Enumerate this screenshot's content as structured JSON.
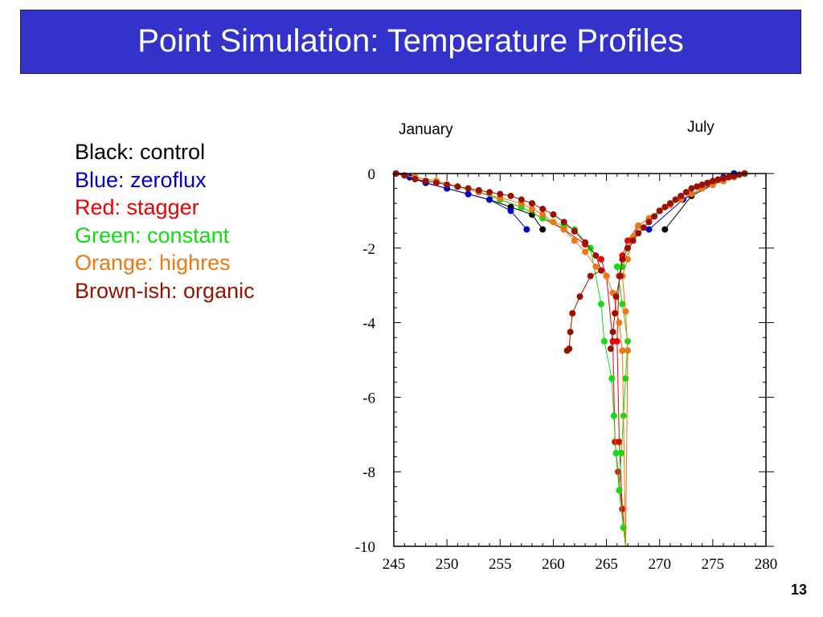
{
  "slide": {
    "title": "Point Simulation: Temperature Profiles",
    "number": "13",
    "title_bar_color": "#3333cc"
  },
  "legend": [
    {
      "text": "Black: control",
      "color": "#000000"
    },
    {
      "text": "Blue: zeroflux",
      "color": "#0000cc"
    },
    {
      "text": "Red: stagger",
      "color": "#ee0000"
    },
    {
      "text": "Green: constant",
      "color": "#11dd11"
    },
    {
      "text": "Orange: highres",
      "color": "#ee7711"
    },
    {
      "text": "Brown-ish: organic",
      "color": "#991100"
    }
  ],
  "chart_data": {
    "type": "line",
    "annotations": [
      "January",
      "July"
    ],
    "xlim": [
      245,
      280
    ],
    "ylim": [
      -10,
      0
    ],
    "xticks": [
      245,
      250,
      255,
      260,
      265,
      270,
      275,
      280
    ],
    "yticks": [
      0,
      -2,
      -4,
      -6,
      -8,
      -10
    ],
    "x_tick_labels": [
      "245",
      "250",
      "255",
      "260",
      "265",
      "270",
      "275",
      "280"
    ],
    "y_tick_labels": [
      "0",
      "-2",
      "-4",
      "-6",
      "-8",
      "-10"
    ],
    "series": [
      {
        "name": "control",
        "color": "#000000",
        "profiles": [
          {
            "x": [
              245.2,
              246.5,
              248,
              250,
              252,
              254,
              256,
              258,
              259
            ],
            "y": [
              0,
              -0.1,
              -0.25,
              -0.4,
              -0.55,
              -0.7,
              -0.9,
              -1.1,
              -1.5
            ]
          },
          {
            "x": [
              277,
              275,
              273,
              270.5
            ],
            "y": [
              0,
              -0.3,
              -0.6,
              -1.5
            ]
          }
        ]
      },
      {
        "name": "zeroflux",
        "color": "#0000cc",
        "profiles": [
          {
            "x": [
              245.2,
              246.5,
              248,
              250,
              252,
              254,
              256,
              257.5
            ],
            "y": [
              0,
              -0.1,
              -0.25,
              -0.4,
              -0.55,
              -0.7,
              -1.0,
              -1.5
            ]
          },
          {
            "x": [
              277,
              276,
              274,
              272.2,
              269
            ],
            "y": [
              0,
              -0.1,
              -0.4,
              -0.7,
              -1.5
            ]
          }
        ]
      },
      {
        "name": "stagger",
        "color": "#ee0000",
        "profiles": [
          {
            "x": [
              245.2,
              247,
              249,
              251,
              253,
              255,
              257,
              259,
              261,
              263,
              264.5,
              265,
              265.6,
              265.8,
              266.1,
              266.5,
              266.8
            ],
            "y": [
              0,
              -0.1,
              -0.2,
              -0.35,
              -0.5,
              -0.7,
              -0.9,
              -1.2,
              -1.5,
              -1.9,
              -2.3,
              -2.75,
              -4.5,
              -7.2,
              -8.0,
              -9.0,
              -10
            ]
          },
          {
            "x": [
              278,
              276,
              274,
              272,
              270,
              268,
              267,
              266.5,
              266.2,
              266,
              266.2,
              266.5,
              266.8
            ],
            "y": [
              0,
              -0.2,
              -0.4,
              -0.7,
              -1.0,
              -1.4,
              -1.8,
              -2.2,
              -2.75,
              -4.5,
              -7.2,
              -9.0,
              -10
            ]
          }
        ]
      },
      {
        "name": "constant",
        "color": "#11dd11",
        "profiles": [
          {
            "x": [
              245.2,
              247,
              249,
              251,
              253,
              255,
              257,
              259,
              261,
              262,
              263.5,
              264.5,
              264.8,
              265.5,
              265.7,
              265.9,
              266.2,
              266.6,
              266.8
            ],
            "y": [
              0,
              -0.1,
              -0.2,
              -0.35,
              -0.5,
              -0.7,
              -0.9,
              -1.2,
              -1.4,
              -1.5,
              -2.0,
              -3.5,
              -4.5,
              -5.5,
              -6.5,
              -7.5,
              -8.5,
              -9.5,
              -10
            ]
          },
          {
            "x": [
              278,
              276,
              274,
              272,
              270,
              268,
              266.5,
              266,
              266.5,
              267,
              266.8,
              266.6,
              266.4,
              266.2,
              266.6,
              266.8
            ],
            "y": [
              0,
              -0.2,
              -0.4,
              -0.7,
              -1.0,
              -1.4,
              -2.5,
              -2.5,
              -3.5,
              -4.5,
              -5.5,
              -6.5,
              -7.5,
              -8.5,
              -9.5,
              -10
            ]
          }
        ]
      },
      {
        "name": "highres",
        "color": "#ee7711",
        "profiles": [
          {
            "x": [
              245.2,
              247,
              249,
              251,
              253,
              255,
              257,
              258,
              259,
              260,
              261,
              262,
              263,
              264,
              265,
              265.6,
              266.2,
              266.5,
              266.8
            ],
            "y": [
              0,
              -0.1,
              -0.2,
              -0.35,
              -0.5,
              -0.65,
              -0.8,
              -0.95,
              -1.1,
              -1.3,
              -1.5,
              -1.8,
              -2.1,
              -2.5,
              -2.75,
              -3.2,
              -4.0,
              -4.75,
              -10
            ]
          },
          {
            "x": [
              278,
              277,
              276,
              275,
              274,
              273,
              272,
              271,
              270,
              269,
              268,
              267.5,
              267,
              266.5,
              266.8,
              267,
              266.8
            ],
            "y": [
              0,
              -0.1,
              -0.2,
              -0.3,
              -0.4,
              -0.55,
              -0.7,
              -0.85,
              -1.0,
              -1.2,
              -1.4,
              -1.7,
              -2.3,
              -2.75,
              -3.7,
              -4.75,
              -10
            ]
          }
        ]
      },
      {
        "name": "organic",
        "color": "#991100",
        "profiles": [
          {
            "x": [
              245.2,
              246,
              247,
              248,
              249,
              250,
              251,
              252,
              253,
              254,
              255,
              256,
              257,
              258,
              259,
              260,
              261,
              262,
              263,
              264,
              264.5,
              263.5,
              262.5,
              261.8,
              261.6,
              261.5,
              261.3
            ],
            "y": [
              0,
              -0.05,
              -0.15,
              -0.2,
              -0.25,
              -0.3,
              -0.35,
              -0.4,
              -0.45,
              -0.5,
              -0.55,
              -0.6,
              -0.7,
              -0.8,
              -0.95,
              -1.1,
              -1.3,
              -1.55,
              -1.85,
              -2.2,
              -2.6,
              -2.75,
              -3.3,
              -3.75,
              -4.25,
              -4.7,
              -4.75
            ]
          },
          {
            "x": [
              278,
              277.5,
              277,
              276.5,
              276,
              275.5,
              275,
              274.5,
              274,
              273.5,
              273,
              272.5,
              272,
              271.5,
              271,
              270.5,
              270,
              269.5,
              269,
              268.5,
              268,
              267.5,
              267,
              266.5,
              266.3,
              265.9,
              265.8,
              265.6,
              265.4
            ],
            "y": [
              0,
              -0.03,
              -0.07,
              -0.1,
              -0.13,
              -0.16,
              -0.2,
              -0.25,
              -0.3,
              -0.35,
              -0.4,
              -0.5,
              -0.6,
              -0.7,
              -0.8,
              -0.9,
              -1.0,
              -1.15,
              -1.3,
              -1.45,
              -1.6,
              -1.8,
              -2.0,
              -2.3,
              -2.75,
              -3.3,
              -3.75,
              -4.25,
              -4.7
            ]
          }
        ]
      }
    ]
  }
}
